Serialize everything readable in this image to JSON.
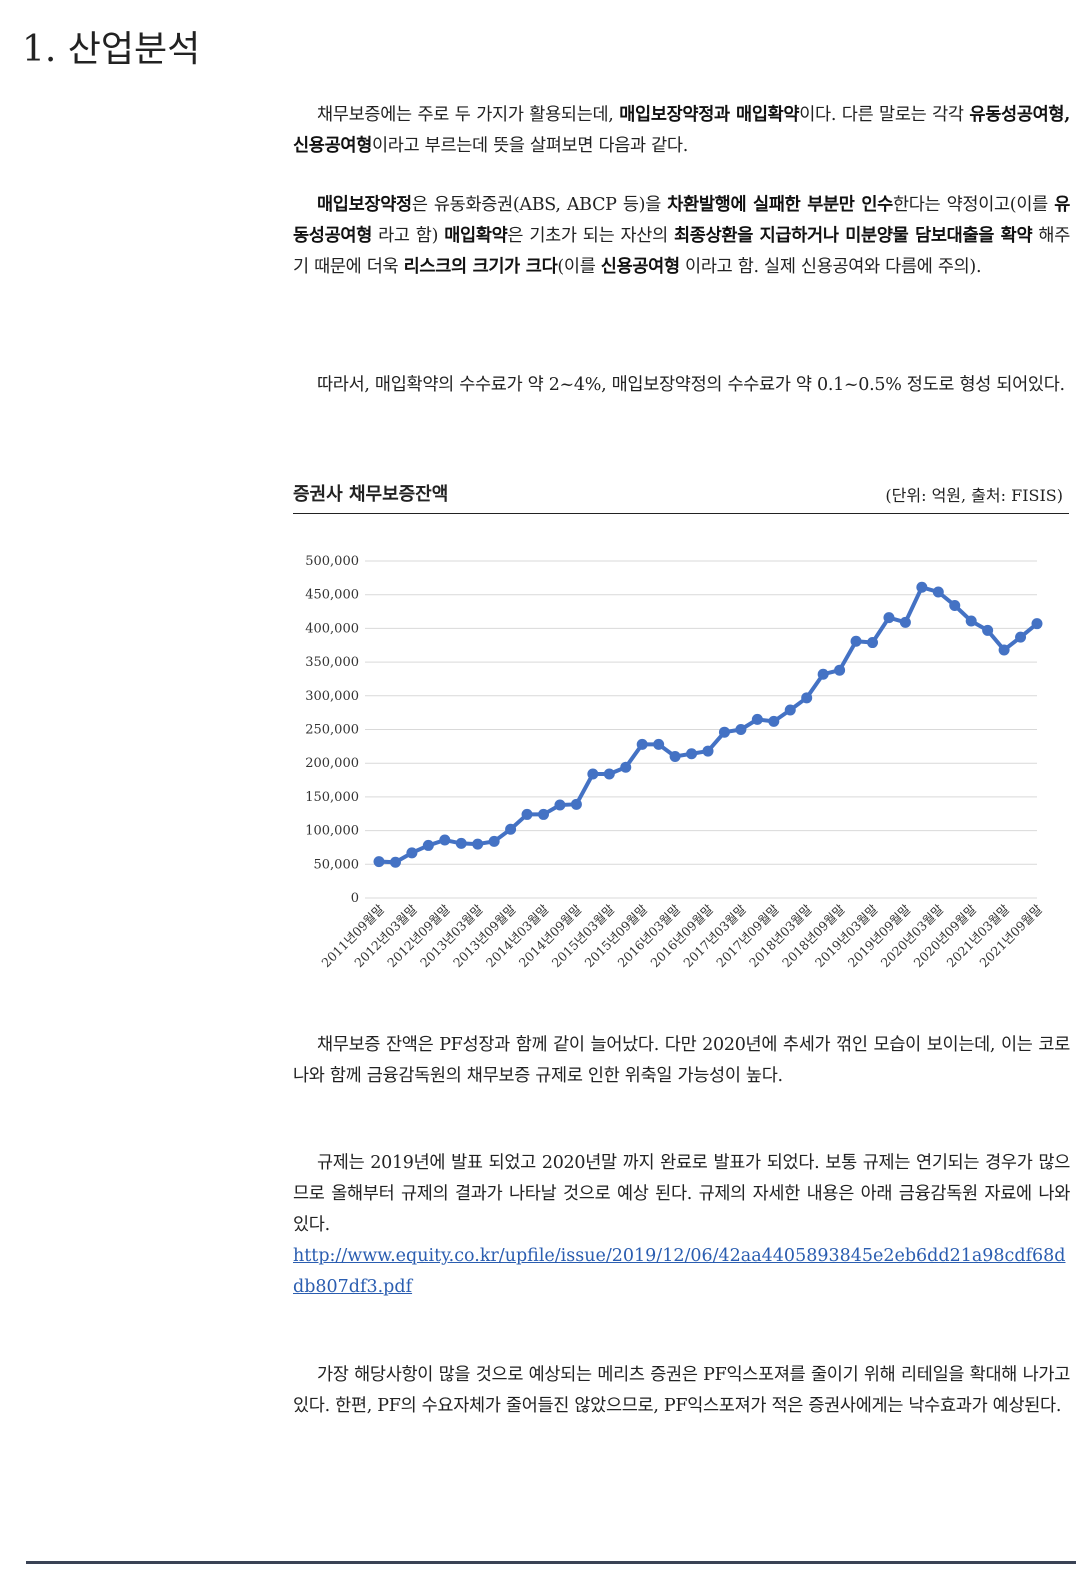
{
  "header": {
    "title": "1. 산업분석"
  },
  "paragraphs": [
    {
      "segments": [
        {
          "text": "채무보증에는 주로 두 가지가 활용되는데, "
        },
        {
          "text": "매입보장약정과 매입확약",
          "bold": true
        },
        {
          "text": "이다. 다른 말로는 각각 "
        },
        {
          "text": "유동성공여형, 신용공여형",
          "bold": true
        },
        {
          "text": "이라고 부르는데 뜻을 살펴보면 다음과 같다."
        }
      ]
    },
    {
      "segments": [
        {
          "text": "매입보장약정",
          "bold": true
        },
        {
          "text": "은 유동화증권(ABS, ABCP 등)을 "
        },
        {
          "text": "차환발행에 실패한 부분만 인수",
          "bold": true
        },
        {
          "text": "한다는 약정이고(이를 "
        },
        {
          "text": "유동성공여형",
          "bold": true
        },
        {
          "text": " 라고 함) "
        },
        {
          "text": "매입확약",
          "bold": true
        },
        {
          "text": "은 기초가 되는 자산의 "
        },
        {
          "text": "최종상환을 지급하거나 미분양물 담보대출을 확약",
          "bold": true
        },
        {
          "text": " 해주기 때문에 더욱 "
        },
        {
          "text": "리스크의 크기가 크다",
          "bold": true
        },
        {
          "text": "(이를 "
        },
        {
          "text": "신용공여형",
          "bold": true
        },
        {
          "text": " 이라고 함. 실제 신용공여와 다름에 주의)."
        }
      ]
    },
    {
      "segments": [
        {
          "text": "따라서, 매입확약의 수수료가 약 2~4%, 매입보장약정의 수수료가 약 0.1~0.5% 정도로 형성 되어있다."
        }
      ]
    },
    {
      "segments": [
        {
          "text": "채무보증 잔액은 PF성장과 함께 같이 늘어났다. 다만 2020년에 추세가 꺾인 모습이 보이는데, 이는 코로나와 함께 금융감독원의 채무보증 규제로 인한 위축일 가능성이 높다."
        }
      ]
    },
    {
      "segments": [
        {
          "text": "규제는 2019년에 발표 되었고 2020년말 까지 완료로 발표가 되었다. 보통 규제는 연기되는 경우가 많으므로 올해부터 규제의 결과가 나타날 것으로 예상 된다. 규제의 자세한 내용은 아래 금융감독원 자료에 나와 있다."
        }
      ],
      "link": "http://www.equity.co.kr/upfile/issue/2019/12/06/42aa4405893845e2eb6dd21a98cdf68ddb807df3.pdf"
    },
    {
      "segments": [
        {
          "text": "가장 해당사항이 많을 것으로 예상되는 메리츠 증권은 PF익스포져를 줄이기 위해 리테일을 확대해 나가고 있다. 한편, PF의 수요자체가 줄어들진 않았으므로, PF익스포져가 적은 증권사에게는 낙수효과가 예상된다."
        }
      ]
    }
  ],
  "chart_data": {
    "type": "line",
    "title": "증권사 채무보증잔액",
    "subtitle": "(단위: 억원, 출처: FISIS)",
    "color": "#4472c4",
    "grid": true,
    "categories": [
      "2011년09월말",
      null,
      "2012년03월말",
      null,
      "2012년09월말",
      null,
      "2013년03월말",
      null,
      "2013년09월말",
      null,
      "2014년03월말",
      null,
      "2014년09월말",
      null,
      "2015년03월말",
      null,
      "2015년09월말",
      null,
      "2016년03월말",
      null,
      "2016년09월말",
      null,
      "2017년03월말",
      null,
      "2017년09월말",
      null,
      "2018년03월말",
      null,
      "2018년09월말",
      null,
      "2019년03월말",
      null,
      "2019년09월말",
      null,
      "2020년03월말",
      null,
      "2020년09월말",
      null,
      "2021년03월말",
      null,
      "2021년09월말"
    ],
    "values": [
      54000,
      53000,
      67000,
      78000,
      86000,
      81000,
      80000,
      84000,
      102000,
      124000,
      124000,
      138000,
      139000,
      184000,
      184000,
      194000,
      228000,
      228000,
      210000,
      214000,
      218000,
      246000,
      250000,
      265000,
      262000,
      279000,
      297000,
      332000,
      338000,
      381000,
      379000,
      416000,
      409000,
      461000,
      454000,
      434000,
      411000,
      397000,
      368000,
      387000,
      407000
    ],
    "ylim": [
      0,
      500000
    ],
    "yticks": [
      0,
      {
        "value": 50000,
        "label": "50,000"
      },
      {
        "value": 100000,
        "label": "100,000"
      },
      {
        "value": 150000,
        "label": "150,000"
      },
      {
        "value": 200000,
        "label": "200,000"
      },
      {
        "value": 250000,
        "label": "250,000"
      },
      {
        "value": 300000,
        "label": "300,000"
      },
      {
        "value": 350000,
        "label": "350,000"
      },
      {
        "value": 400000,
        "label": "400,000"
      },
      {
        "value": 450000,
        "label": "450,000"
      },
      {
        "value": 500000,
        "label": "500,000"
      }
    ]
  }
}
